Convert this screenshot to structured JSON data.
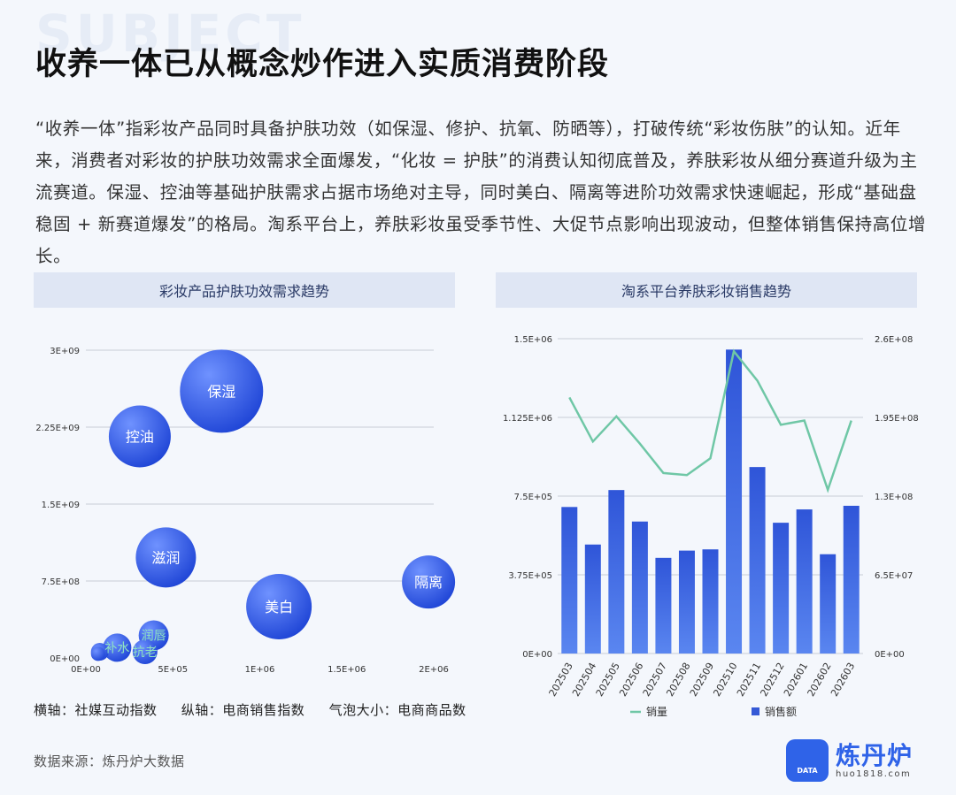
{
  "background_word": "SUBJECT",
  "title": "收养一体已从概念炒作进入实质消费阶段",
  "intro": "“收养一体”指彩妆产品同时具备护肤功效（如保湿、修护、抗氧、防晒等），打破传统“彩妆伤肤”的认知。近年来，消费者对彩妆的护肤功效需求全面爆发，“化妆 = 护肤”的消费认知彻底普及，养肤彩妆从细分赛道升级为主流赛道。保湿、控油等基础护肤需求占据市场绝对主导，同时美白、隔离等进阶功效需求快速崛起，形成“基础盘稳固 + 新赛道爆发”的格局。淘系平台上，养肤彩妆虽受季节性、大促节点影响出现波动，但整体销售保持高位增长。",
  "left_panel_title": "彩妆产品护肤功效需求趋势",
  "right_panel_title": "淘系平台养肤彩妆销售趋势",
  "axis_note": {
    "x": "横轴：社媒互动指数",
    "y": "纵轴：电商销售指数",
    "size": "气泡大小：电商商品数"
  },
  "source": "数据来源：炼丹炉大数据",
  "logo": {
    "name": "炼丹炉",
    "url": "huo1818.com",
    "badge": "DATA"
  },
  "colors": {
    "accent": "#2f63e8",
    "bar": "#3559d6",
    "line": "#6fc7a6"
  },
  "chart_data": [
    {
      "type": "scatter",
      "subtype": "bubble",
      "title": "彩妆产品护肤功效需求趋势",
      "xlabel": "社媒互动指数",
      "ylabel": "电商销售指数",
      "size_label": "电商商品数",
      "xlim": [
        0,
        2000000
      ],
      "ylim": [
        0,
        3000000000
      ],
      "x_ticks": [
        "0E+00",
        "5E+05",
        "1E+06",
        "1.5E+06",
        "2E+06"
      ],
      "y_ticks": [
        "0E+00",
        "7.5E+08",
        "1.5E+09",
        "2.25E+09",
        "3E+09"
      ],
      "grid": true,
      "points": [
        {
          "label": "保湿",
          "x": 780000,
          "y": 2600000000,
          "size": 47
        },
        {
          "label": "控油",
          "x": 310000,
          "y": 2160000000,
          "size": 35
        },
        {
          "label": "滋润",
          "x": 460000,
          "y": 980000000,
          "size": 34
        },
        {
          "label": "美白",
          "x": 1110000,
          "y": 500000000,
          "size": 37
        },
        {
          "label": "隔离",
          "x": 1970000,
          "y": 740000000,
          "size": 30
        },
        {
          "label": "补水",
          "x": 180000,
          "y": 100000000,
          "size": 16
        },
        {
          "label": "润唇",
          "x": 390000,
          "y": 220000000,
          "size": 17
        },
        {
          "label": "抗老",
          "x": 340000,
          "y": 60000000,
          "size": 14
        },
        {
          "label": "",
          "x": 80000,
          "y": 60000000,
          "size": 10
        },
        {
          "label": "",
          "x": 70000,
          "y": 40000000,
          "size": 8
        }
      ]
    },
    {
      "type": "bar",
      "title": "淘系平台养肤彩妆销售趋势",
      "categories": [
        "202503",
        "202504",
        "202505",
        "202506",
        "202507",
        "202508",
        "202509",
        "202510",
        "202511",
        "202512",
        "202601",
        "202602",
        "202603"
      ],
      "ylim_left": [
        0,
        1500000
      ],
      "ylim_right": [
        0,
        260000000
      ],
      "y_left_ticks": [
        "0E+00",
        "3.75E+05",
        "7.5E+05",
        "1.125E+06",
        "1.5E+06"
      ],
      "y_right_ticks": [
        "0E+00",
        "6.5E+07",
        "1.3E+08",
        "1.95E+08",
        "2.6E+08"
      ],
      "grid": true,
      "legend_position": "bottom",
      "series": [
        {
          "name": "销量",
          "type": "line",
          "axis": "left",
          "values": [
            1220000,
            1010000,
            1130000,
            1000000,
            860000,
            850000,
            930000,
            1440000,
            1300000,
            1090000,
            1110000,
            780000,
            1110000
          ]
        },
        {
          "name": "销售额",
          "type": "bar",
          "axis": "right",
          "values": [
            121000000,
            90000000,
            135000000,
            109000000,
            79000000,
            85000000,
            86000000,
            251000000,
            154000000,
            108000000,
            119000000,
            82000000,
            122000000
          ]
        }
      ]
    }
  ]
}
